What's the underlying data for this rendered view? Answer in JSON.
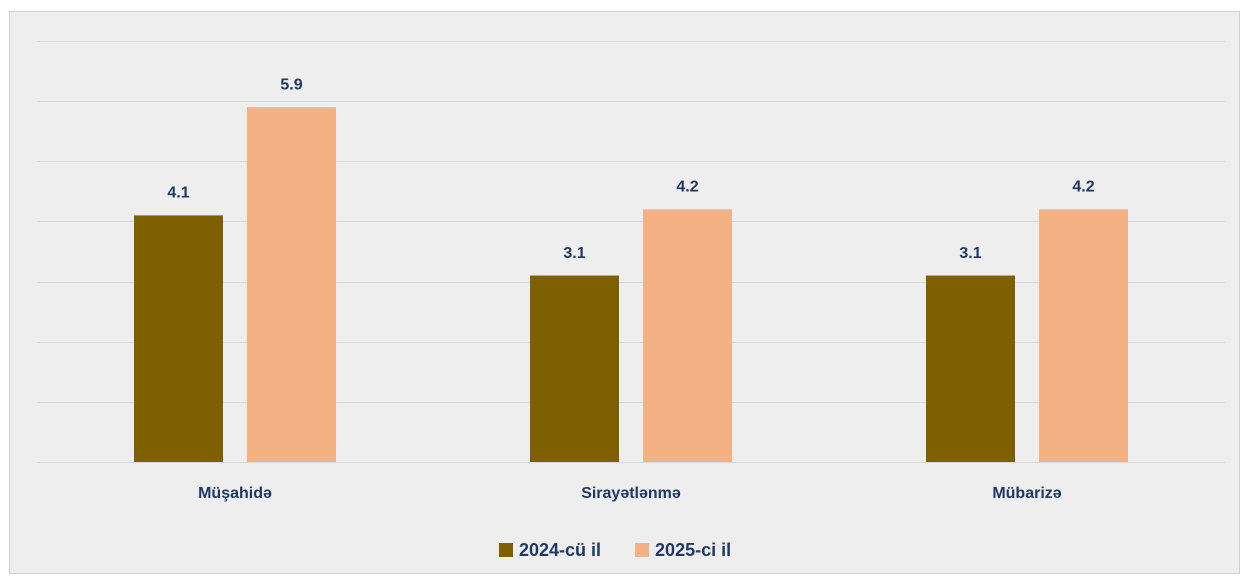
{
  "chart_data": {
    "type": "bar",
    "categories": [
      "Müşahidə",
      "Sirayətlənmə",
      "Mübarizə"
    ],
    "series": [
      {
        "name": "2024-cü il",
        "color": "#7f6000",
        "values": [
          4.1,
          3.1,
          3.1
        ]
      },
      {
        "name": "2025-ci il",
        "color": "#f4b183",
        "values": [
          5.9,
          4.2,
          4.2
        ]
      }
    ],
    "ylim": [
      0,
      7
    ],
    "yticks": [
      0,
      1,
      2,
      3,
      4,
      5,
      6,
      7
    ],
    "grid": true,
    "legend": "bottom"
  }
}
